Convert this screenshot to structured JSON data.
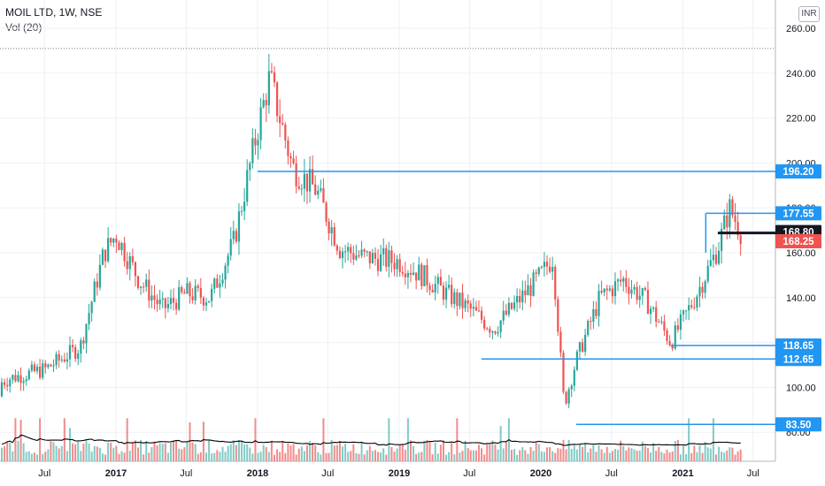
{
  "header": {
    "symbol_line": "MOIL LTD, 1W, NSE",
    "volume_line": "Vol (20)",
    "currency": "INR"
  },
  "chart_data": {
    "type": "candlestick",
    "title": "MOIL LTD, 1W, NSE",
    "ylim": [
      75,
      265
    ],
    "y_ticks": [
      260,
      240,
      220,
      200,
      180,
      160,
      140,
      120,
      100,
      80
    ],
    "x_ticks": [
      "Jul",
      "2017",
      "Jul",
      "2018",
      "Jul",
      "2019",
      "Jul",
      "2020",
      "Jul",
      "2021",
      "Jul"
    ],
    "x_tick_dates": [
      "2016-07",
      "2017-01",
      "2017-07",
      "2018-01",
      "2018-07",
      "2019-01",
      "2019-07",
      "2020-01",
      "2020-07",
      "2021-01",
      "2021-07"
    ],
    "price_path": [
      [
        "2016-01",
        96
      ],
      [
        "2016-04",
        104
      ],
      [
        "2016-07",
        108
      ],
      [
        "2016-10",
        118
      ],
      [
        "2016-12",
        160
      ],
      [
        "2017-01",
        168
      ],
      [
        "2017-03",
        148
      ],
      [
        "2017-05",
        135
      ],
      [
        "2017-07",
        142
      ],
      [
        "2017-09",
        140
      ],
      [
        "2017-11",
        165
      ],
      [
        "2018-01",
        215
      ],
      [
        "2018-02",
        238
      ],
      [
        "2018-04",
        198
      ],
      [
        "2018-06",
        188
      ],
      [
        "2018-08",
        162
      ],
      [
        "2018-10",
        158
      ],
      [
        "2019-01",
        156
      ],
      [
        "2019-03",
        150
      ],
      [
        "2019-05",
        142
      ],
      [
        "2019-07",
        135
      ],
      [
        "2019-09",
        126
      ],
      [
        "2019-11",
        138
      ],
      [
        "2020-01",
        150
      ],
      [
        "2020-02",
        158
      ],
      [
        "2020-03",
        92
      ],
      [
        "2020-04",
        112
      ],
      [
        "2020-06",
        140
      ],
      [
        "2020-08",
        148
      ],
      [
        "2020-10",
        138
      ],
      [
        "2020-12",
        120
      ],
      [
        "2021-02",
        140
      ],
      [
        "2021-04",
        162
      ],
      [
        "2021-05",
        180
      ],
      [
        "2021-06",
        168.8
      ]
    ],
    "volume_sma_line": true,
    "horizontal_levels": [
      {
        "value": 196.2,
        "label": "196.20",
        "color": "#2196f3"
      },
      {
        "value": 177.55,
        "label": "177.55",
        "color": "#2196f3"
      },
      {
        "value": 168.8,
        "label": "168.80",
        "color": "#131722"
      },
      {
        "value": 168.25,
        "label": "168.25",
        "color": "#ef5350"
      },
      {
        "value": 118.65,
        "label": "118.65",
        "color": "#2196f3"
      },
      {
        "value": 112.65,
        "label": "112.65",
        "color": "#2196f3"
      },
      {
        "value": 83.5,
        "label": "83.50",
        "color": "#2196f3"
      }
    ],
    "high_dotted_level": 251,
    "grid": true,
    "colors": {
      "up": "#26a69a",
      "down": "#ef5350",
      "vol_up": "#80cbc4",
      "vol_down": "#f28b8b",
      "sma": "#000000"
    }
  }
}
